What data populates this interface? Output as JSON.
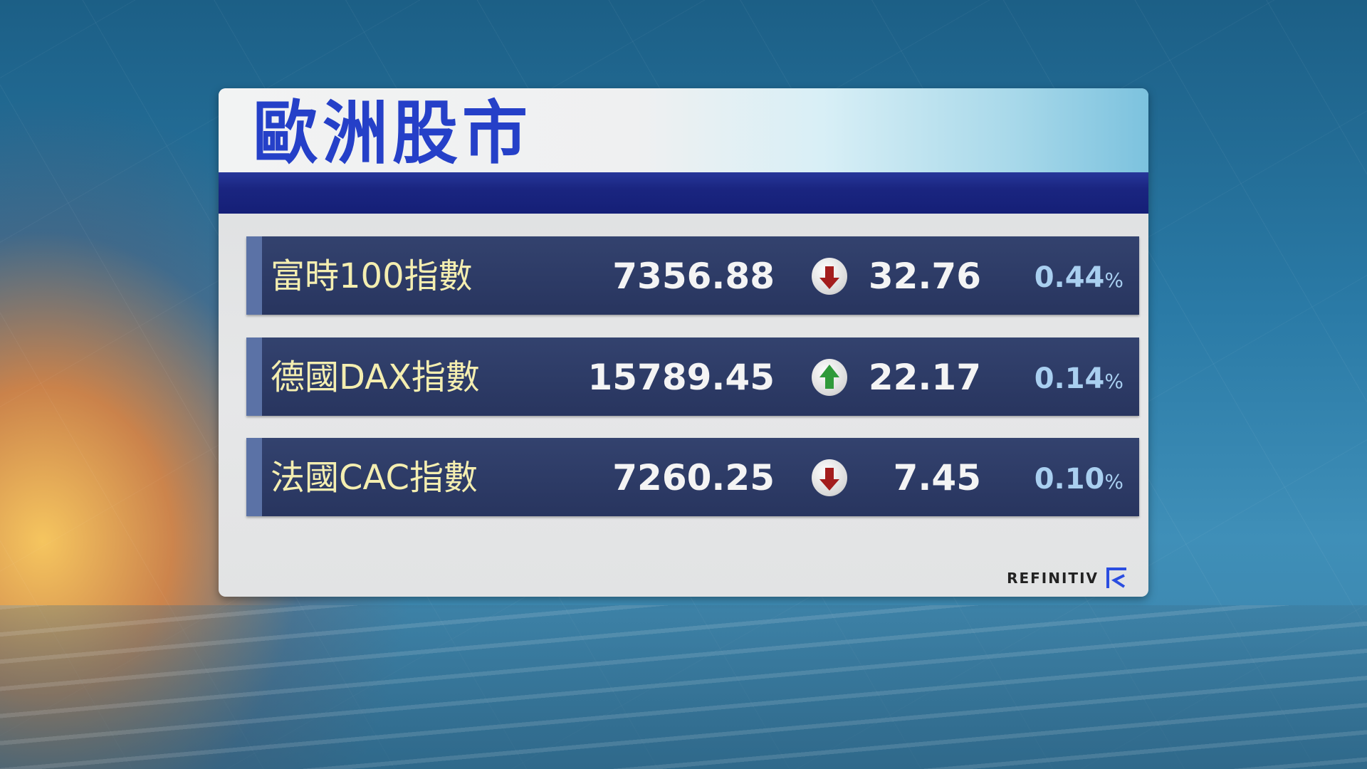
{
  "title": "歐洲股市",
  "rows": [
    {
      "name": "富時100指數",
      "value": "7356.88",
      "direction": "down",
      "change": "32.76",
      "percent": "0.44",
      "percent_sign": "%"
    },
    {
      "name": "德國DAX指數",
      "value": "15789.45",
      "direction": "up",
      "change": "22.17",
      "percent": "0.14",
      "percent_sign": "%"
    },
    {
      "name": "法國CAC指數",
      "value": "7260.25",
      "direction": "down",
      "change": "7.45",
      "percent": "0.10",
      "percent_sign": "%"
    }
  ],
  "colors": {
    "up": "#2f9a3a",
    "down": "#a31d1d",
    "title": "#2540c8"
  },
  "source_logo": "REFINITIV"
}
